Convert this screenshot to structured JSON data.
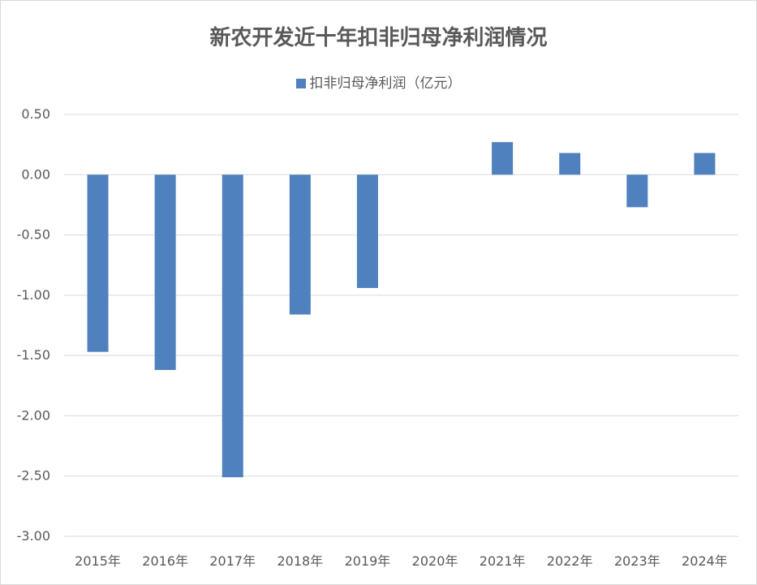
{
  "chart_data": {
    "type": "bar",
    "title": "新农开发近十年扣非归母净利润情况",
    "categories": [
      "2015年",
      "2016年",
      "2017年",
      "2018年",
      "2019年",
      "2020年",
      "2021年",
      "2022年",
      "2023年",
      "2024年"
    ],
    "series": [
      {
        "name": "扣非归母净利润（亿元）",
        "values": [
          -1.47,
          -1.62,
          -2.51,
          -1.16,
          -0.94,
          0,
          0.27,
          0.18,
          -0.27,
          0.18
        ],
        "color": "#4e81bd"
      }
    ],
    "ylim": [
      -3.0,
      0.5
    ],
    "yticks": [
      "0.50",
      "0.00",
      "-0.50",
      "-1.00",
      "-1.50",
      "-2.00",
      "-2.50",
      "-3.00"
    ],
    "ytick_values": [
      0.5,
      0.0,
      -0.5,
      -1.0,
      -1.5,
      -2.0,
      -2.5,
      -3.0
    ],
    "grid": true,
    "legend_position": "top"
  }
}
